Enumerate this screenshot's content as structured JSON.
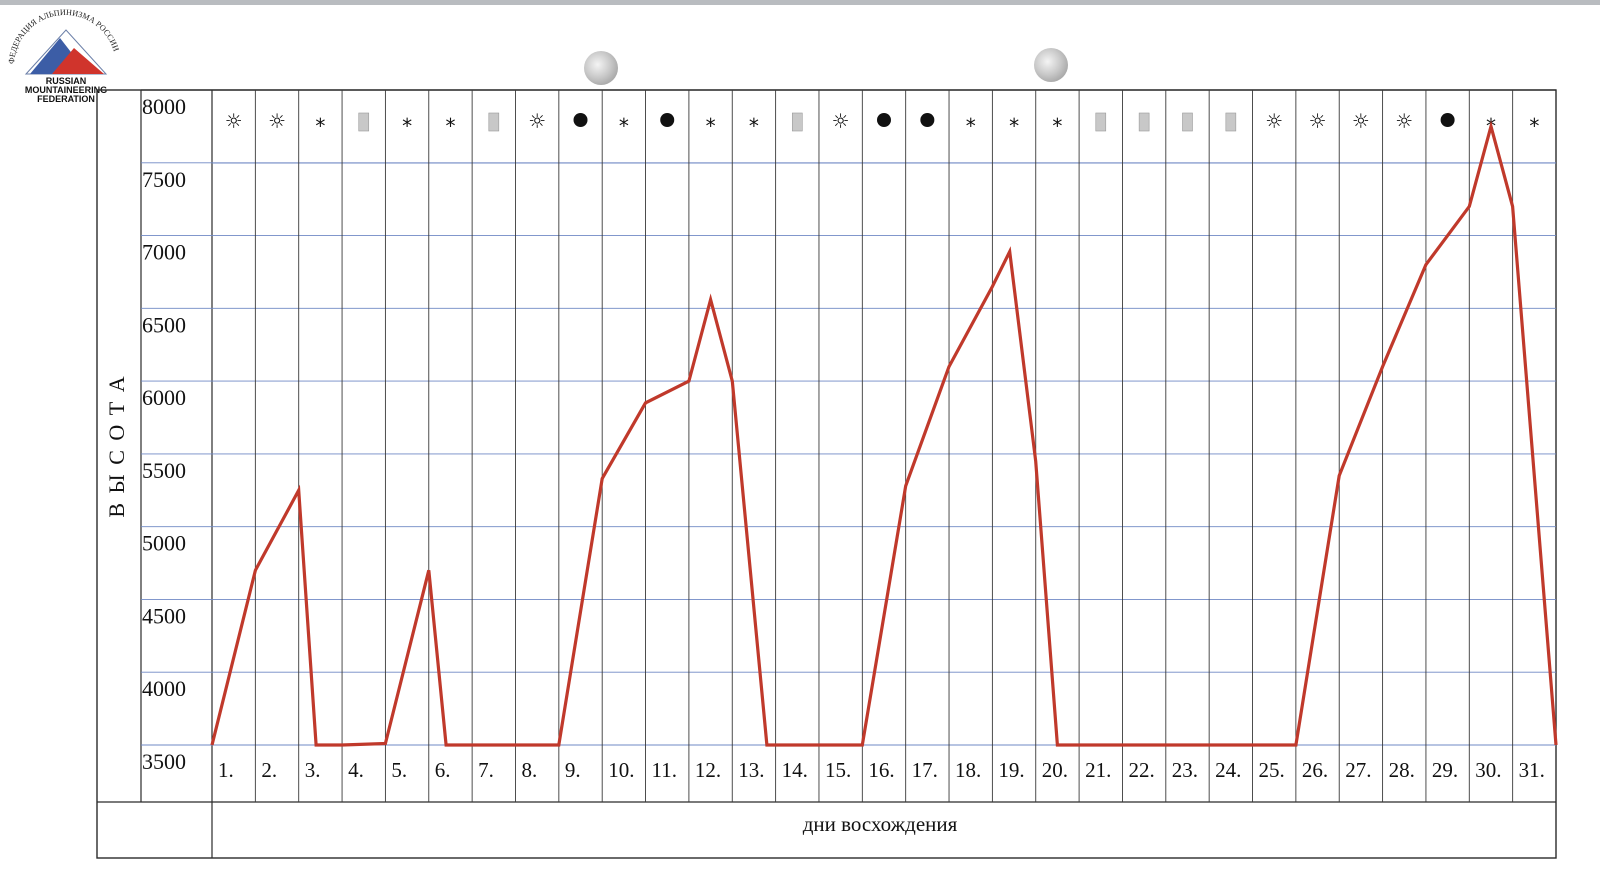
{
  "logo": {
    "arc_text": "ФЕДЕРАЦИЯ АЛЬПИНИЗМА РОССИИ",
    "lines": [
      "RUSSIAN",
      "MOUNTAINEERING",
      "FEDERATION"
    ]
  },
  "chart_data": {
    "type": "line",
    "ylabel": "В Ы С О Т А",
    "xlabel": "дни восхождения",
    "ylim": [
      3500,
      8000
    ],
    "yticks": [
      3500,
      4000,
      4500,
      5000,
      5500,
      6000,
      6500,
      7000,
      7500,
      8000
    ],
    "categories": [
      "1.",
      "2.",
      "3.",
      "4.",
      "5.",
      "6.",
      "7.",
      "8.",
      "9.",
      "10.",
      "11.",
      "12.",
      "13.",
      "14.",
      "15.",
      "16.",
      "17.",
      "18.",
      "19.",
      "20.",
      "21.",
      "22.",
      "23.",
      "24.",
      "25.",
      "26.",
      "27.",
      "28.",
      "29.",
      "30.",
      "31."
    ],
    "weather": [
      "sun",
      "sun",
      "snow",
      "overcast",
      "snow",
      "snow",
      "overcast",
      "sun",
      "night",
      "snow",
      "night",
      "snow",
      "snow",
      "overcast",
      "sun",
      "night",
      "night",
      "snow",
      "snow",
      "snow",
      "overcast",
      "overcast",
      "overcast",
      "overcast",
      "sun",
      "sun",
      "sun",
      "sun",
      "night",
      "snow",
      "snow"
    ],
    "weather_symbols": {
      "sun": "☼",
      "snow": "*",
      "night": "●",
      "overcast": "░"
    },
    "series": [
      {
        "color": "#c0392b",
        "points": [
          [
            0,
            3500
          ],
          [
            1,
            4700
          ],
          [
            2,
            5250
          ],
          [
            2.4,
            3500
          ],
          [
            3,
            3500
          ],
          [
            4,
            3510
          ],
          [
            5,
            4700
          ],
          [
            5.4,
            3500
          ],
          [
            6,
            3500
          ],
          [
            7,
            3500
          ],
          [
            8,
            3500
          ],
          [
            9,
            5330
          ],
          [
            10,
            5850
          ],
          [
            11,
            6000
          ],
          [
            11.5,
            6560
          ],
          [
            12,
            6000
          ],
          [
            12.8,
            3500
          ],
          [
            13,
            3500
          ],
          [
            14,
            3500
          ],
          [
            15,
            3500
          ],
          [
            16,
            5280
          ],
          [
            17,
            6100
          ],
          [
            18,
            6650
          ],
          [
            18.4,
            6890
          ],
          [
            19,
            5450
          ],
          [
            19.5,
            3500
          ],
          [
            20,
            3500
          ],
          [
            21,
            3500
          ],
          [
            22,
            3500
          ],
          [
            23,
            3500
          ],
          [
            24,
            3500
          ],
          [
            25,
            3500
          ],
          [
            26,
            5350
          ],
          [
            27,
            6100
          ],
          [
            28,
            6800
          ],
          [
            29,
            7200
          ],
          [
            29.5,
            7750
          ],
          [
            30,
            7200
          ],
          [
            31,
            3500
          ]
        ]
      }
    ],
    "grid": true,
    "colors": {
      "grid_h": "#6f88c4",
      "grid_v": "#3a3a3a",
      "line": "#c0392b"
    }
  }
}
